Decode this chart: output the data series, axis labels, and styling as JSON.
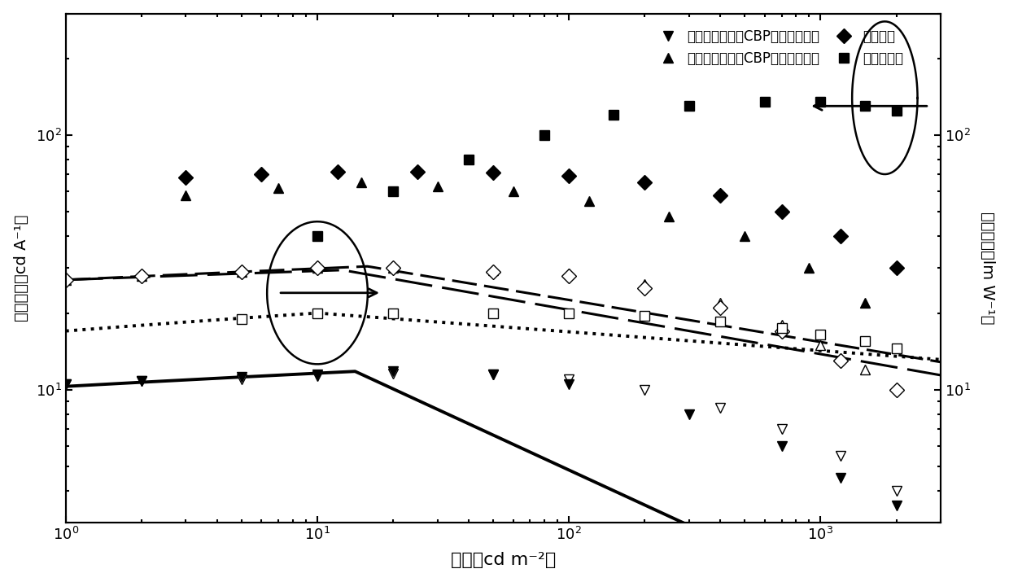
{
  "xlabel": "亮度（cd m⁻²）",
  "ylabel_left": "电流效率（cd A⁻¹）",
  "ylabel_right": "功率效率（lm W⁻¹）",
  "legend_1": "不含激子隔离层CBP的超薄非掺杂",
  "legend_2": "含有激子隔离层CBP的超薄非掺杂",
  "legend_3": "传统掺杂",
  "legend_4": "传统非掺杂",
  "xlim": [
    1.0,
    3000.0
  ],
  "ylim_left": [
    3.0,
    300.0
  ],
  "ylim_right": [
    3.0,
    300.0
  ],
  "s1_filled_down_x": [
    1,
    2,
    5,
    10,
    20,
    50,
    100,
    300,
    700,
    1200,
    2000
  ],
  "s1_filled_down_y": [
    10.5,
    10.8,
    11.2,
    11.5,
    11.8,
    11.5,
    10.5,
    8.0,
    6.0,
    4.5,
    3.5
  ],
  "s2_filled_up_x": [
    3,
    7,
    15,
    30,
    60,
    120,
    250,
    500,
    900,
    1500
  ],
  "s2_filled_up_y": [
    58,
    62,
    65,
    63,
    60,
    55,
    48,
    40,
    30,
    22
  ],
  "s3_filled_diamond_x": [
    3,
    6,
    12,
    25,
    50,
    100,
    200,
    400,
    700,
    1200,
    2000
  ],
  "s3_filled_diamond_y": [
    68,
    70,
    72,
    72,
    71,
    69,
    65,
    58,
    50,
    40,
    30
  ],
  "s4_filled_square_x": [
    10,
    20,
    40,
    80,
    150,
    300,
    600,
    1000,
    1500,
    2000
  ],
  "s4_filled_square_y": [
    40,
    60,
    80,
    100,
    120,
    130,
    135,
    135,
    130,
    125
  ],
  "s1_open_down_x": [
    1,
    2,
    5,
    10,
    20,
    50,
    100,
    200,
    400,
    700,
    1200,
    2000
  ],
  "s1_open_down_y": [
    10.5,
    10.8,
    11.0,
    11.3,
    11.6,
    11.5,
    11.0,
    10.0,
    8.5,
    7.0,
    5.5,
    4.0
  ],
  "s2_open_up_x": [
    1,
    2,
    5,
    10,
    20,
    50,
    100,
    200,
    400,
    700,
    1000,
    1500
  ],
  "s2_open_up_y": [
    27,
    28,
    29,
    30,
    30,
    29.5,
    28.5,
    26,
    22,
    18,
    15,
    12
  ],
  "s3_open_diamond_x": [
    1,
    2,
    5,
    10,
    20,
    50,
    100,
    200,
    400,
    700,
    1200,
    2000
  ],
  "s3_open_diamond_y": [
    27,
    28,
    29,
    30,
    30,
    29,
    28,
    25,
    21,
    17,
    13,
    10
  ],
  "s4_open_square_x": [
    5,
    10,
    20,
    50,
    100,
    200,
    400,
    700,
    1000,
    1500,
    2000
  ],
  "s4_open_square_y": [
    19,
    20,
    20,
    20,
    20,
    19.5,
    18.5,
    17.5,
    16.5,
    15.5,
    14.5
  ]
}
